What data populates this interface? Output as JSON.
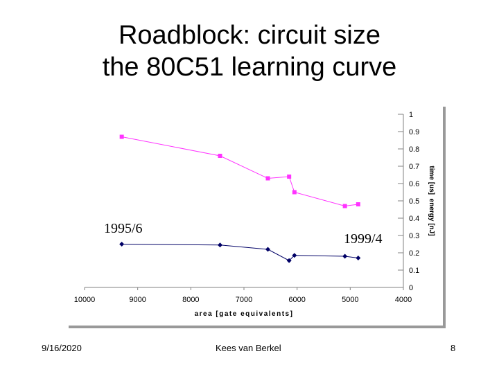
{
  "title": {
    "line1": "Roadblock: circuit size",
    "line2": "the 80C51 learning curve"
  },
  "footer": {
    "date": "9/16/2020",
    "author": "Kees van Berkel",
    "page": "8"
  },
  "chart_data": {
    "type": "line",
    "xlabel": "area [gate equivalents]",
    "ylabel": "time [us]  energy [nJ]",
    "x_axis": {
      "reversed": true,
      "xlim": [
        10000,
        4000
      ],
      "ticks": [
        "10000",
        "9000",
        "8000",
        "7000",
        "6000",
        "5000",
        "4000"
      ]
    },
    "y_axis": {
      "side": "right",
      "ylim": [
        0,
        1
      ],
      "ticks": [
        "0",
        "0.1",
        "0.2",
        "0.3",
        "0.4",
        "0.5",
        "0.6",
        "0.7",
        "0.8",
        "0.9",
        "1"
      ]
    },
    "grid": false,
    "legend": "none",
    "annotations": [
      "1995/6",
      "1999/4"
    ],
    "series": [
      {
        "color": "#ff33ff",
        "marker": "square",
        "x": [
          9300,
          7450,
          6550,
          6150,
          6050,
          5100,
          4850
        ],
        "y": [
          0.87,
          0.76,
          0.63,
          0.64,
          0.55,
          0.47,
          0.48
        ]
      },
      {
        "color": "#000066",
        "marker": "diamond",
        "x": [
          9300,
          7450,
          6550,
          6150,
          6050,
          5100,
          4850
        ],
        "y": [
          0.25,
          0.245,
          0.22,
          0.155,
          0.185,
          0.18,
          0.17
        ]
      }
    ]
  }
}
